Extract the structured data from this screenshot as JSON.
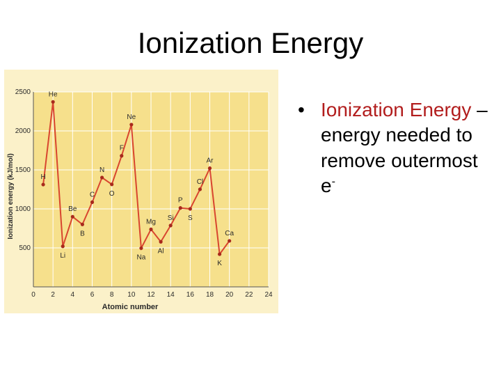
{
  "slide": {
    "title": "Ionization Energy",
    "bullet": {
      "term": "Ionization Energy",
      "separator": " – ",
      "definition": "energy needed to remove outermost e",
      "superscript": "-"
    }
  },
  "colors": {
    "plot_bg": "#f6e08c",
    "panel_bg": "#fbf1c9",
    "line": "#d8452f",
    "marker": "#a82a1c",
    "grid": "#ffffff",
    "label": "#2a2a2a"
  },
  "chart_data": {
    "type": "line",
    "title": "",
    "xlabel": "Atomic number",
    "ylabel": "Ionization energy (kJ/mol)",
    "xlim": [
      0,
      24
    ],
    "ylim": [
      0,
      2500
    ],
    "xticks": [
      0,
      2,
      4,
      6,
      8,
      10,
      12,
      14,
      16,
      18,
      20,
      22,
      24
    ],
    "yticks": [
      500,
      1000,
      1500,
      2000,
      2500
    ],
    "grid": true,
    "series": [
      {
        "x": [
          1,
          2,
          3,
          4,
          5,
          6,
          7,
          8,
          9,
          10,
          11,
          12,
          13,
          14,
          15,
          16,
          17,
          18,
          19,
          20
        ],
        "y": [
          1312,
          2372,
          520,
          900,
          801,
          1086,
          1402,
          1314,
          1681,
          2081,
          496,
          738,
          578,
          787,
          1012,
          1000,
          1251,
          1521,
          419,
          590
        ]
      }
    ],
    "point_labels": [
      "H",
      "He",
      "Li",
      "Be",
      "B",
      "C",
      "N",
      "O",
      "F",
      "Ne",
      "Na",
      "Mg",
      "Al",
      "Si",
      "P",
      "S",
      "Cl",
      "Ar",
      "K",
      "Ca"
    ]
  }
}
